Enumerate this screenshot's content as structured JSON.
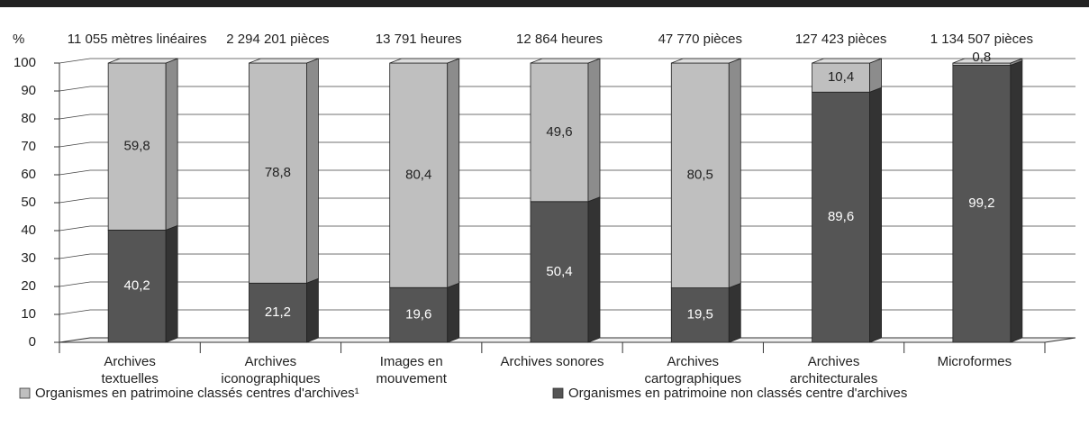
{
  "chart_data": {
    "type": "bar",
    "stacked": true,
    "y_label": "%",
    "totals": [
      "11 055 mètres linéaires",
      "2 294 201 pièces",
      "13 791 heures",
      "12 864 heures",
      "47 770 pièces",
      "127 423 pièces",
      "1 134 507 pièces"
    ],
    "categories": [
      [
        "Archives",
        "textuelles"
      ],
      [
        "Archives",
        "iconographiques"
      ],
      [
        "Images en",
        "mouvement"
      ],
      [
        "Archives sonores"
      ],
      [
        "Archives",
        "cartographiques"
      ],
      [
        "Archives",
        "architecturales"
      ],
      [
        "Microformes"
      ]
    ],
    "series": [
      {
        "name": "Organismes en patrimoine non classés centre d'archives",
        "color": "#555555",
        "side": "#333333",
        "label_color": "#ffffff",
        "values": [
          40.2,
          21.2,
          19.6,
          50.4,
          19.5,
          89.6,
          99.2
        ],
        "value_labels": [
          "40,2",
          "21,2",
          "19,6",
          "50,4",
          "19,5",
          "89,6",
          "99,2"
        ]
      },
      {
        "name": "Organismes en patrimoine classés centres d'archives¹",
        "color": "#bfbfbf",
        "side": "#8c8c8c",
        "top": "#dcdcdc",
        "label_color": "#222222",
        "values": [
          59.8,
          78.8,
          80.4,
          49.6,
          80.5,
          10.4,
          0.8
        ],
        "value_labels": [
          "59,8",
          "78,8",
          "80,4",
          "49,6",
          "80,5",
          "10,4",
          "0,8"
        ]
      }
    ],
    "legend_order": [
      1,
      0
    ],
    "ylim": [
      0,
      100
    ],
    "yticks": [
      0,
      10,
      20,
      30,
      40,
      50,
      60,
      70,
      80,
      90,
      100
    ],
    "grid": true
  }
}
